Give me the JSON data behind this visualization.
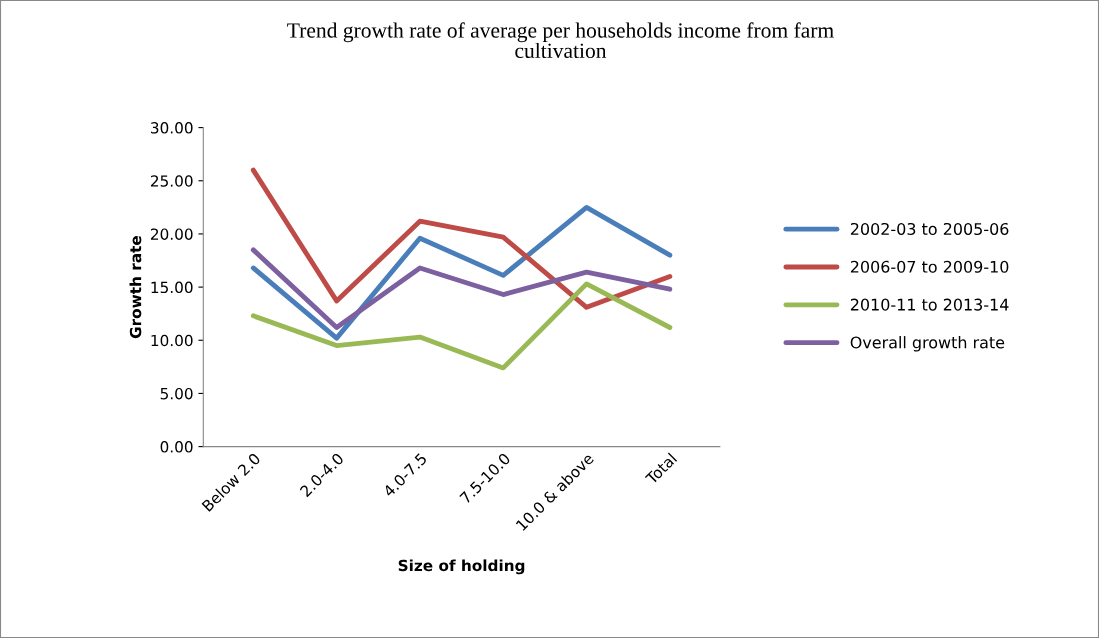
{
  "chart_data": {
    "type": "line",
    "title": "Trend growth rate of average per households income from farm\ncultivation",
    "xlabel": "Size of holding",
    "ylabel": "Growth rate",
    "categories": [
      "Below 2.0",
      "2.0-4.0",
      "4.0-7.5",
      "7.5-10.0",
      "10.0 & above",
      "Total"
    ],
    "series": [
      {
        "name": "2002-03 to 2005-06",
        "color": "#4a7ebb",
        "values": [
          16.8,
          10.2,
          19.6,
          16.1,
          22.5,
          18.0
        ]
      },
      {
        "name": "2006-07 to 2009-10",
        "color": "#be4b48",
        "values": [
          26.0,
          13.7,
          21.2,
          19.7,
          13.1,
          16.0
        ]
      },
      {
        "name": "2010-11 to 2013-14",
        "color": "#98b954",
        "values": [
          12.3,
          9.5,
          10.3,
          7.4,
          15.3,
          11.2
        ]
      },
      {
        "name": "Overall growth rate",
        "color": "#7d60a0",
        "values": [
          18.5,
          11.2,
          16.8,
          14.3,
          16.4,
          14.8
        ]
      }
    ],
    "ylim": [
      0,
      30
    ],
    "yticks": [
      {
        "value": 0,
        "label": "0.00"
      },
      {
        "value": 5,
        "label": "5.00"
      },
      {
        "value": 10,
        "label": "10.00"
      },
      {
        "value": 15,
        "label": "15.00"
      },
      {
        "value": 20,
        "label": "20.00"
      },
      {
        "value": 25,
        "label": "25.00"
      },
      {
        "value": 30,
        "label": "30.00"
      }
    ],
    "grid": false,
    "legend": "right",
    "marker": "none",
    "line_style": "solid"
  }
}
